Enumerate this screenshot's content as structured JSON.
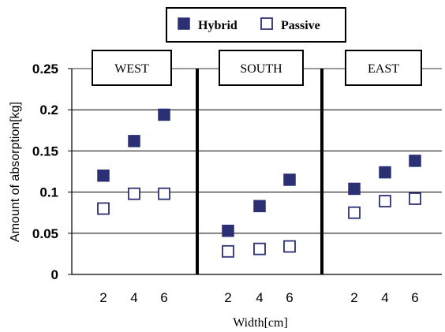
{
  "chart_data": {
    "type": "scatter",
    "xlabel": "Width[cm]",
    "ylabel": "Amount of absorption[kg]",
    "ylim": [
      0,
      0.25
    ],
    "y_ticks": [
      "0",
      "0.05",
      "0.1",
      "0.15",
      "0.2",
      "0.25"
    ],
    "grid": "horizontal",
    "legend_position": "top",
    "groups": [
      {
        "label": "WEST",
        "x": [
          "2",
          "4",
          "6"
        ]
      },
      {
        "label": "SOUTH",
        "x": [
          "2",
          "4",
          "6"
        ]
      },
      {
        "label": "EAST",
        "x": [
          "2",
          "4",
          "6"
        ]
      }
    ],
    "series": [
      {
        "name": "Hybrid",
        "marker": "filled-square",
        "color": "#2b2f73",
        "values": [
          [
            0.12,
            0.162,
            0.194
          ],
          [
            0.053,
            0.083,
            0.115
          ],
          [
            0.104,
            0.124,
            0.138
          ]
        ]
      },
      {
        "name": "Passive",
        "marker": "open-square",
        "color": "#2b2f73",
        "values": [
          [
            0.08,
            0.098,
            0.098
          ],
          [
            0.028,
            0.031,
            0.034
          ],
          [
            0.075,
            0.089,
            0.092
          ]
        ]
      }
    ]
  }
}
